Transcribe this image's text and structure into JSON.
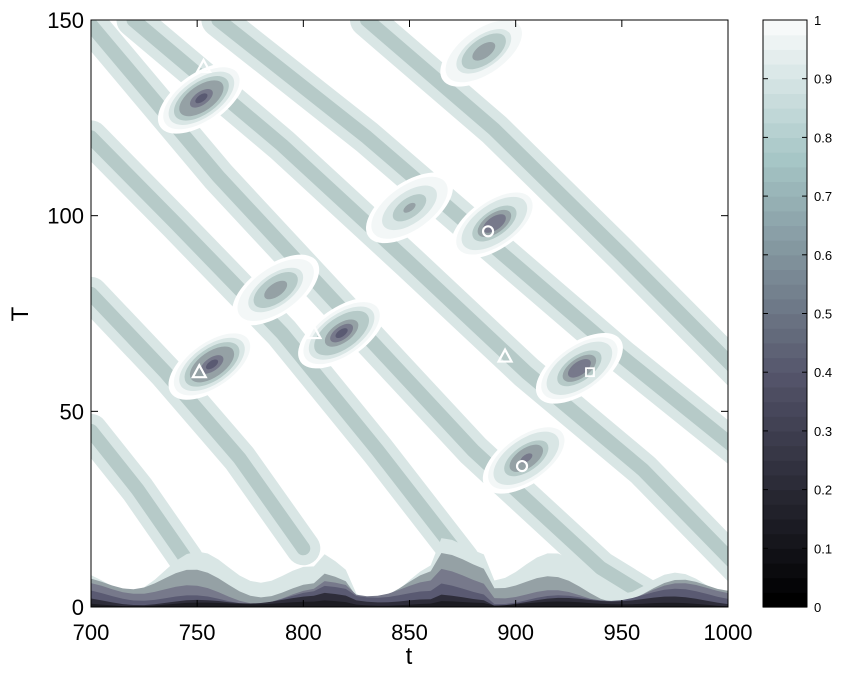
{
  "chart_data": {
    "type": "heatmap",
    "subtype": "filled-contour",
    "title": "",
    "xlabel": "t",
    "ylabel": "T",
    "xlim": [
      700,
      1000
    ],
    "ylim": [
      0,
      150
    ],
    "xticks": [
      "700",
      "750",
      "800",
      "850",
      "900",
      "950",
      "1000"
    ],
    "yticks": [
      "0",
      "50",
      "100",
      "150"
    ],
    "colorbar": {
      "range": [
        0,
        1
      ],
      "ticks": [
        "0",
        "0.1",
        "0.2",
        "0.3",
        "0.4",
        "0.5",
        "0.6",
        "0.7",
        "0.8",
        "0.9",
        "1"
      ],
      "colormap": "bone"
    },
    "contour_levels": [
      0.1,
      0.2,
      0.3,
      0.4,
      0.5,
      0.6,
      0.7,
      0.8,
      0.9
    ],
    "level_colors": [
      "#1c1c22",
      "#2e2d3a",
      "#44425a",
      "#5a5a72",
      "#77798b",
      "#95a1a5",
      "#b6cac8",
      "#d9e6e5",
      "#f3f7f7",
      "#ffffff"
    ],
    "minima_regions": [
      {
        "t": 752,
        "T": 130,
        "value": 0.35
      },
      {
        "t": 757,
        "T": 62,
        "value": 0.35
      },
      {
        "t": 818,
        "T": 70,
        "value": 0.38
      },
      {
        "t": 890,
        "T": 98,
        "value": 0.42
      },
      {
        "t": 930,
        "T": 61,
        "value": 0.42
      },
      {
        "t": 905,
        "T": 38,
        "value": 0.45
      },
      {
        "t": 885,
        "T": 142,
        "value": 0.5
      },
      {
        "t": 787,
        "T": 81,
        "value": 0.5
      },
      {
        "t": 850,
        "T": 102,
        "value": 0.55
      }
    ],
    "markers": [
      {
        "symbol": "triangle",
        "t": 753,
        "T": 138
      },
      {
        "symbol": "triangle",
        "t": 751,
        "T": 60
      },
      {
        "symbol": "triangle",
        "t": 805,
        "T": 70
      },
      {
        "symbol": "triangle",
        "t": 895,
        "T": 64
      },
      {
        "symbol": "circle",
        "t": 887,
        "T": 96
      },
      {
        "symbol": "circle",
        "t": 903,
        "T": 36
      },
      {
        "symbol": "square",
        "t": 935,
        "T": 60
      }
    ]
  }
}
